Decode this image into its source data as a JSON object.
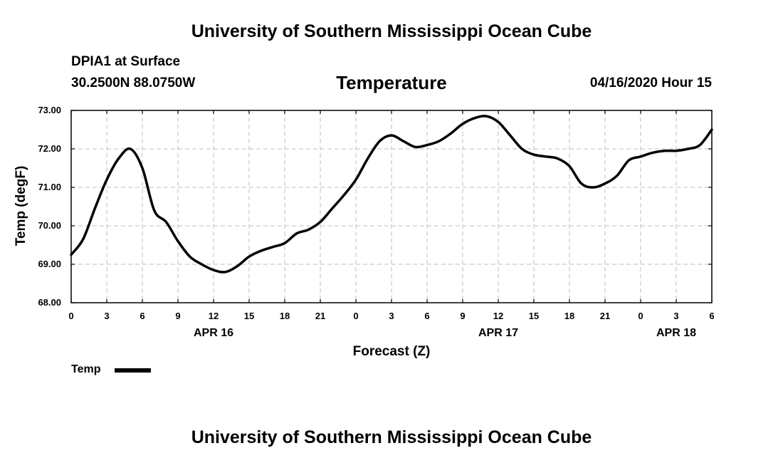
{
  "header": {
    "title": "University of Southern Mississippi Ocean Cube",
    "station": "DPIA1 at Surface",
    "coords": "30.2500N 88.0750W",
    "variable": "Temperature",
    "datetime": "04/16/2020 Hour 15"
  },
  "footer": {
    "title": "University of Southern Mississippi Ocean Cube"
  },
  "chart_data": {
    "type": "line",
    "title": "Temperature",
    "xlabel": "Forecast (Z)",
    "ylabel": "Temp (degF)",
    "ylim": [
      68.0,
      73.0
    ],
    "xlim": [
      0,
      54
    ],
    "grid": true,
    "legend_placement": "bottom-left",
    "y_ticks": [
      "68.00",
      "69.00",
      "70.00",
      "71.00",
      "72.00",
      "73.00"
    ],
    "x_ticks": [
      "0",
      "3",
      "6",
      "9",
      "12",
      "15",
      "18",
      "21",
      "0",
      "3",
      "6",
      "9",
      "12",
      "15",
      "18",
      "21",
      "0",
      "3",
      "6"
    ],
    "date_labels": [
      {
        "label": "APR 16",
        "hour_offset": 12
      },
      {
        "label": "APR 17",
        "hour_offset": 36
      },
      {
        "label": "APR 18",
        "hour_offset": 51
      }
    ],
    "series": [
      {
        "name": "Temp",
        "x": [
          0,
          1,
          2,
          3,
          4,
          5,
          6,
          7,
          8,
          9,
          10,
          11,
          12,
          13,
          14,
          15,
          16,
          17,
          18,
          19,
          20,
          21,
          22,
          23,
          24,
          25,
          26,
          27,
          28,
          29,
          30,
          31,
          32,
          33,
          34,
          35,
          36,
          37,
          38,
          39,
          40,
          41,
          42,
          43,
          44,
          45,
          46,
          47,
          48,
          49,
          50,
          51,
          52,
          53,
          54
        ],
        "values": [
          69.25,
          69.65,
          70.45,
          71.2,
          71.75,
          72.0,
          71.5,
          70.4,
          70.1,
          69.6,
          69.2,
          69.0,
          68.85,
          68.8,
          68.95,
          69.2,
          69.35,
          69.45,
          69.55,
          69.8,
          69.9,
          70.1,
          70.45,
          70.8,
          71.2,
          71.75,
          72.2,
          72.35,
          72.2,
          72.05,
          72.1,
          72.2,
          72.4,
          72.65,
          72.8,
          72.85,
          72.7,
          72.35,
          72.0,
          71.85,
          71.8,
          71.75,
          71.55,
          71.1,
          71.0,
          71.1,
          71.3,
          71.7,
          71.8,
          71.9,
          71.95,
          71.95,
          72.0,
          72.1,
          72.5
        ]
      }
    ]
  }
}
